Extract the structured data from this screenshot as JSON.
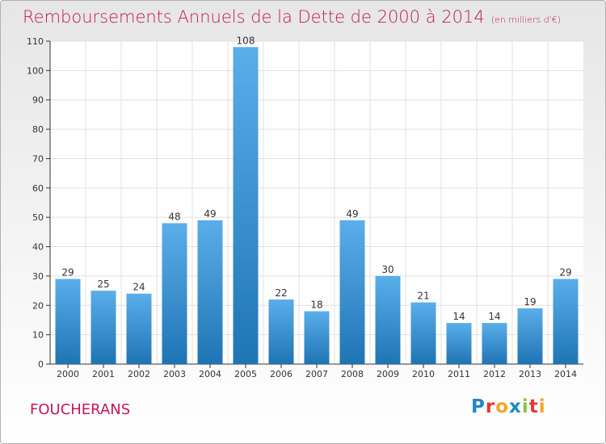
{
  "header": {
    "title": "Remboursements Annuels de la Dette de 2000 à 2014",
    "unit": "(en milliers d'€)"
  },
  "commune": "FOUCHERANS",
  "logo": {
    "text": "Proxiti",
    "letter_colors": [
      "#1e88c7",
      "#e53935",
      "#f5a623",
      "#1e88c7",
      "#8bc34a",
      "#e53935",
      "#f5a623"
    ]
  },
  "colors": {
    "title": "#c2185b",
    "bar_light": "#5aaeea",
    "bar_dark": "#1f74b4",
    "grid": "#e0e0e0"
  },
  "chart_data": {
    "type": "bar",
    "title": "Remboursements Annuels de la Dette de 2000 à 2014",
    "subtitle": "(en milliers d'€)",
    "categories": [
      "2000",
      "2001",
      "2002",
      "2003",
      "2004",
      "2005",
      "2006",
      "2007",
      "2008",
      "2009",
      "2010",
      "2011",
      "2012",
      "2013",
      "2014"
    ],
    "values": [
      29,
      25,
      24,
      48,
      49,
      108,
      22,
      18,
      49,
      30,
      21,
      14,
      14,
      19,
      29
    ],
    "yticks": [
      0,
      10,
      20,
      30,
      40,
      50,
      60,
      70,
      80,
      90,
      100,
      110
    ],
    "ylim": [
      0,
      110
    ],
    "grid": true,
    "xlabel": "",
    "ylabel": ""
  }
}
